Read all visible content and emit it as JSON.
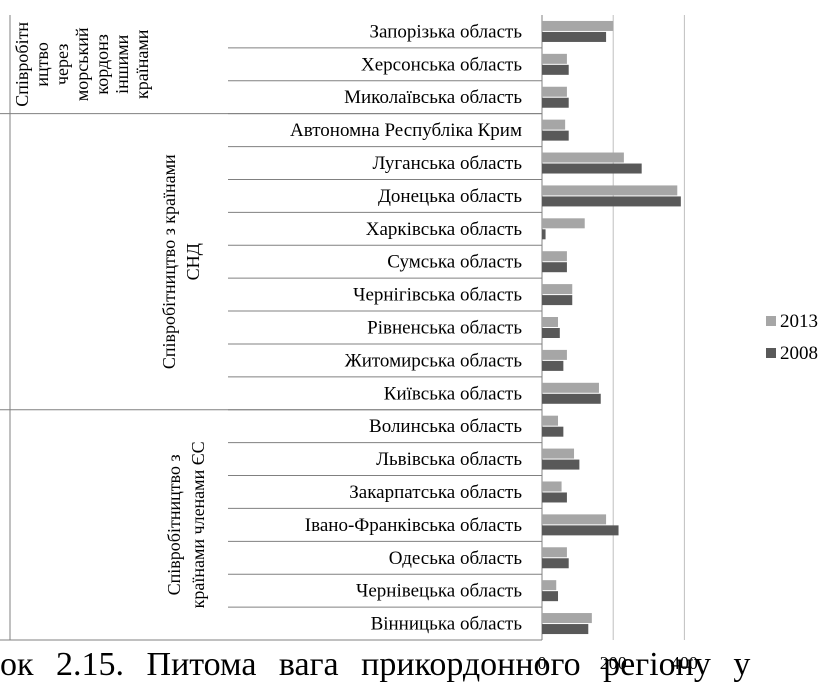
{
  "chart_data": {
    "type": "bar",
    "orientation": "horizontal",
    "categories": [
      "Запорізька область",
      "Херсонська область",
      "Миколаївська область",
      "Автономна Республіка Крим",
      "Луганська область",
      "Донецька область",
      "Харківська область",
      "Сумська область",
      "Чернігівська область",
      "Рівненська область",
      "Житомирська область",
      "Київська область",
      "Волинська область",
      "Львівська область",
      "Закарпатська область",
      "Івано-Франківська область",
      "Одеська область",
      "Чернівецька область",
      "Вінницька область"
    ],
    "groups": [
      {
        "label_lines": [
          "Співробітн",
          "ицтво",
          "через",
          "морський",
          "кордонз",
          "іншими",
          "країнами"
        ],
        "from": 0,
        "to": 2
      },
      {
        "label_lines": [
          "Співробітництво з країнами",
          "СНД"
        ],
        "from": 3,
        "to": 11
      },
      {
        "label_lines": [
          "Співробітництво з",
          "країнами членами ЄС"
        ],
        "from": 12,
        "to": 18
      }
    ],
    "series": [
      {
        "name": "2013",
        "color": "#a6a6a6",
        "values": [
          200,
          70,
          70,
          65,
          230,
          380,
          120,
          70,
          85,
          45,
          70,
          160,
          45,
          90,
          55,
          180,
          70,
          40,
          140
        ]
      },
      {
        "name": "2008",
        "color": "#595959",
        "values": [
          180,
          75,
          75,
          75,
          280,
          390,
          10,
          70,
          85,
          50,
          60,
          165,
          60,
          105,
          70,
          215,
          75,
          45,
          130
        ]
      }
    ],
    "xlim": [
      0,
      500
    ],
    "xticks": [
      0,
      200,
      400
    ],
    "grid": true,
    "legend_position": "right"
  },
  "caption": "ок 2.15. Питома вага прикордонного регіону у"
}
